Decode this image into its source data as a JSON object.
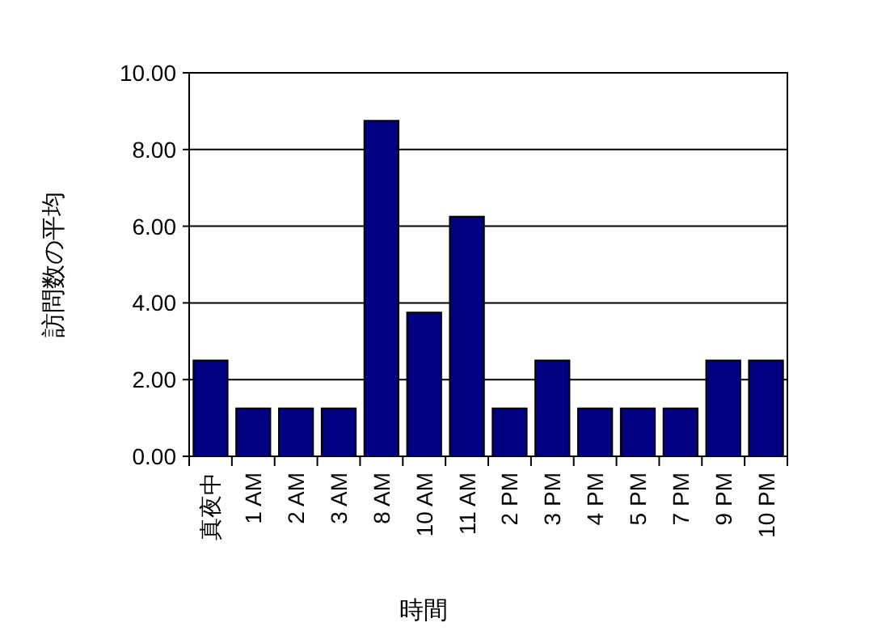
{
  "chart_data": {
    "type": "bar",
    "xlabel": "時間",
    "ylabel": "訪問数の平均",
    "categories": [
      "真夜中",
      "1 AM",
      "2 AM",
      "3 AM",
      "8 AM",
      "10 AM",
      "11 AM",
      "2 PM",
      "3 PM",
      "4 PM",
      "5 PM",
      "7 PM",
      "9 PM",
      "10 PM"
    ],
    "values": [
      2.5,
      1.25,
      1.25,
      1.25,
      8.75,
      3.75,
      6.25,
      1.25,
      2.5,
      1.25,
      1.25,
      1.25,
      2.5,
      2.5
    ],
    "color": "#000080",
    "ylim": [
      0,
      10
    ],
    "yticks": [
      {
        "value": 0,
        "label": "0.00"
      },
      {
        "value": 2,
        "label": "2.00"
      },
      {
        "value": 4,
        "label": "4.00"
      },
      {
        "value": 6,
        "label": "6.00"
      },
      {
        "value": 8,
        "label": "8.00"
      },
      {
        "value": 10,
        "label": "10.00"
      }
    ],
    "grid": "y"
  }
}
